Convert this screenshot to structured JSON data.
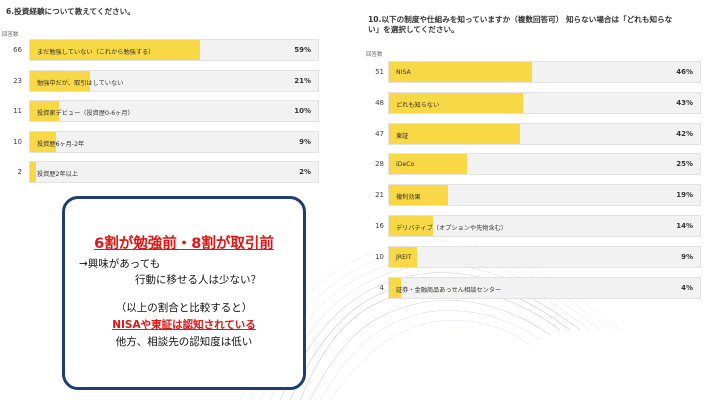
{
  "colors": {
    "bar": "#f8d844",
    "track": "#f2f2f2",
    "accent_red": "#e21414",
    "callout_border": "#1f3d6e"
  },
  "chart_data": [
    {
      "type": "bar",
      "orientation": "horizontal",
      "title": "6.投資経験について教えてください。",
      "count_label": "回答数",
      "categories": [
        "まだ勉強していない（これから勉強する）",
        "勉強中だが、取引はしていない",
        "投資家デビュー（投資歴0-6ヶ月）",
        "投資歴6ヶ月-2年",
        "投資歴2年以上"
      ],
      "counts": [
        "66",
        "23",
        "11",
        "10",
        "2"
      ],
      "percent_labels": [
        "59%",
        "21%",
        "10%",
        "9%",
        "2%"
      ],
      "values": [
        59,
        21,
        10,
        9,
        2
      ],
      "xlim": [
        0,
        100
      ]
    },
    {
      "type": "bar",
      "orientation": "horizontal",
      "title": "10.以下の制度や仕組みを知っていますか（複数回答可） 知らない場合は「どれも知らない」を選択してください。",
      "count_label": "回答数",
      "categories": [
        "NISA",
        "どれも知らない",
        "東証",
        "iDeCo",
        "複利効果",
        "デリバティブ（オプションや先物含む）",
        "JREIT",
        "証券・金融商品あっせん相談センター"
      ],
      "counts": [
        "51",
        "48",
        "47",
        "28",
        "21",
        "16",
        "10",
        "4"
      ],
      "percent_labels": [
        "46%",
        "43%",
        "42%",
        "25%",
        "19%",
        "14%",
        "9%",
        "4%"
      ],
      "values": [
        46,
        43,
        42,
        25,
        19,
        14,
        9,
        4
      ],
      "xlim": [
        0,
        100
      ]
    }
  ],
  "callout": {
    "headline": "6割が勉強前・8割が取引前",
    "line1": "→興味があっても",
    "line2": "行動に移せる人は少ない？",
    "line3": "（以上の割合と比較すると）",
    "line4": "NISAや東証は認知されている",
    "line5": "他方、相談先の認知度は低い"
  }
}
